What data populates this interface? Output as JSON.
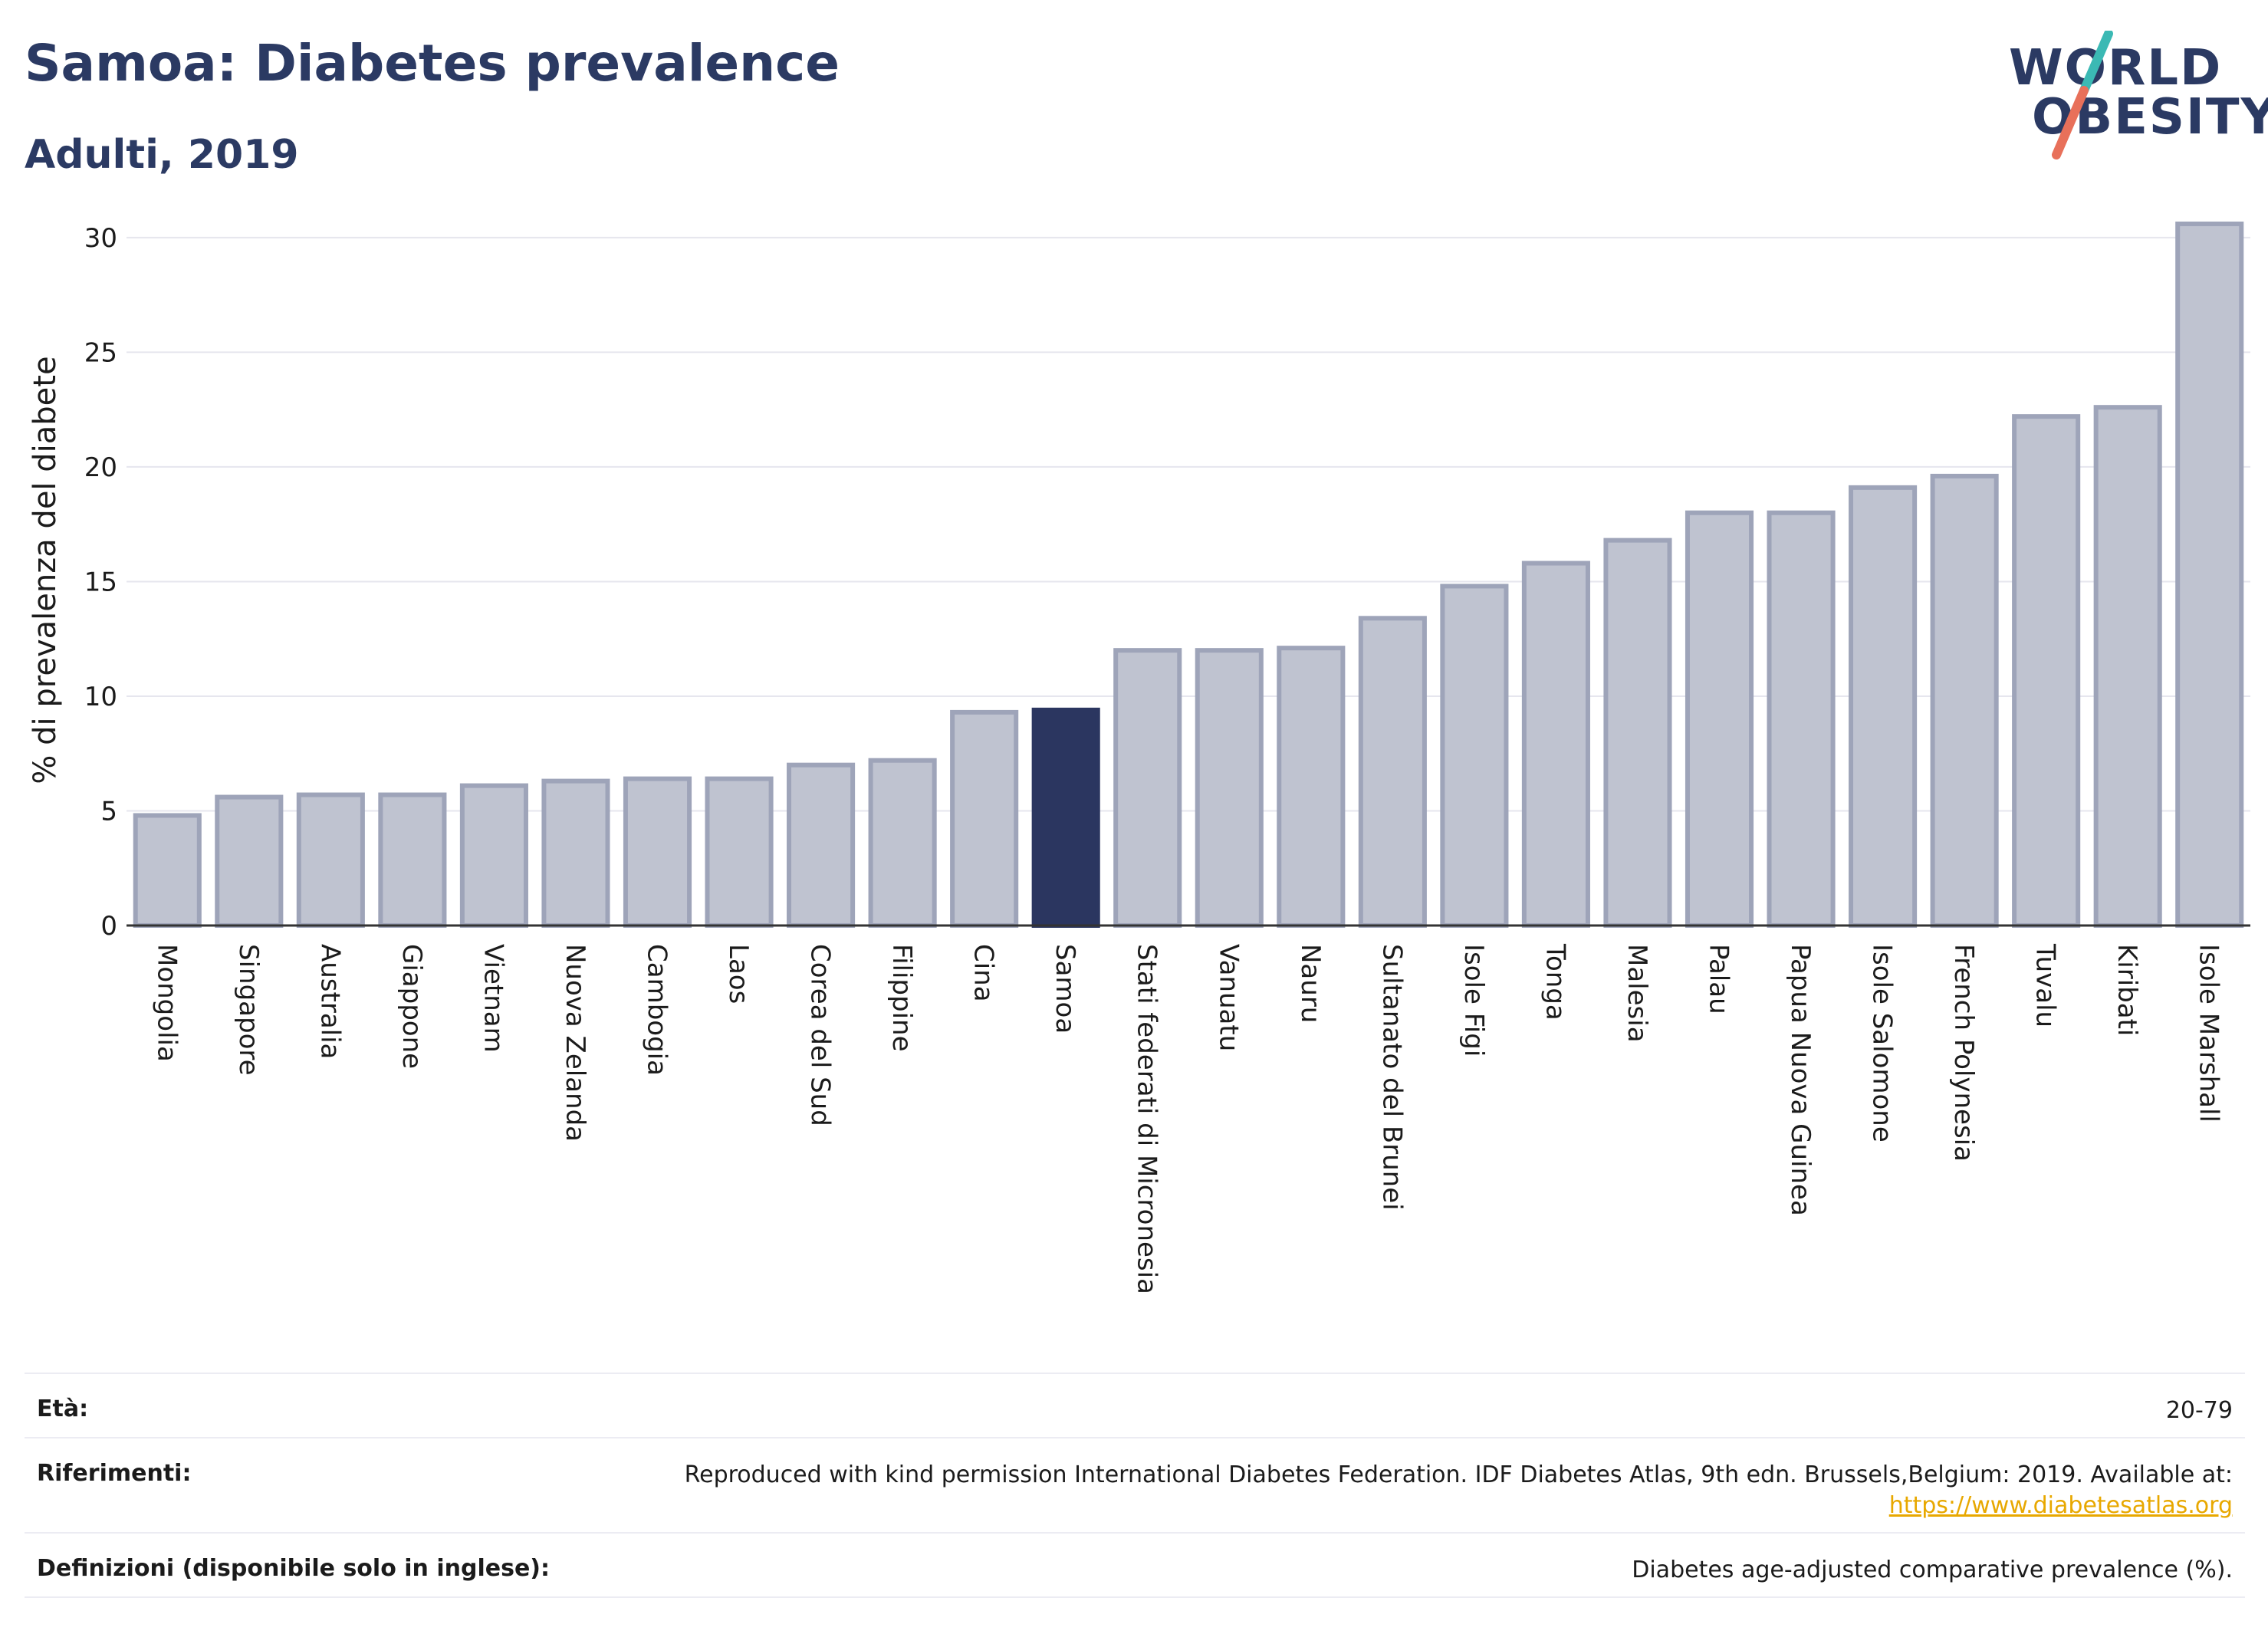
{
  "header": {
    "title": "Samoa: Diabetes prevalence",
    "subtitle": "Adulti, 2019"
  },
  "logo": {
    "line1": "WORLD",
    "line2": "OBESITY",
    "accent_top": "#3bb9b4",
    "accent_bottom": "#e8705a"
  },
  "colors": {
    "bar": "#bfc3d0",
    "bar_stroke": "#9ea4b9",
    "highlight": "#2b3660",
    "axis": "#333333",
    "grid": "#e6e6ee"
  },
  "chart_data": {
    "type": "bar",
    "ylabel": "% di prevalenza del diabete",
    "ylim": [
      0,
      31
    ],
    "yticks": [
      0,
      5,
      10,
      15,
      20,
      25,
      30
    ],
    "grid": true,
    "highlight": "Samoa",
    "categories": [
      "Mongolia",
      "Singapore",
      "Australia",
      "Giappone",
      "Vietnam",
      "Nuova Zelanda",
      "Cambogia",
      "Laos",
      "Corea del Sud",
      "Filippine",
      "Cina",
      "Samoa",
      "Stati federati di Micronesia",
      "Vanuatu",
      "Nauru",
      "Sultanato del Brunei",
      "Isole Figi",
      "Tonga",
      "Malesia",
      "Palau",
      "Papua Nuova Guinea",
      "Isole Salomone",
      "French Polynesia",
      "Tuvalu",
      "Kiribati",
      "Isole Marshall"
    ],
    "values": [
      4.8,
      5.6,
      5.7,
      5.7,
      6.1,
      6.3,
      6.4,
      6.4,
      7.0,
      7.2,
      9.3,
      9.4,
      12.0,
      12.0,
      12.1,
      13.4,
      14.8,
      15.8,
      16.8,
      18.0,
      18.0,
      19.1,
      19.6,
      22.2,
      22.6,
      30.6
    ]
  },
  "info": {
    "age_label": "Età:",
    "age_value": "20-79",
    "refs_label": "Riferimenti:",
    "refs_value": "Reproduced with kind permission International Diabetes Federation. IDF Diabetes Atlas, 9th edn. Brussels,Belgium: 2019. Available at:",
    "refs_link": "https://www.diabetesatlas.org",
    "defs_label": "Definizioni (disponibile solo in inglese):",
    "defs_value": "Diabetes age-adjusted comparative prevalence (%)."
  }
}
